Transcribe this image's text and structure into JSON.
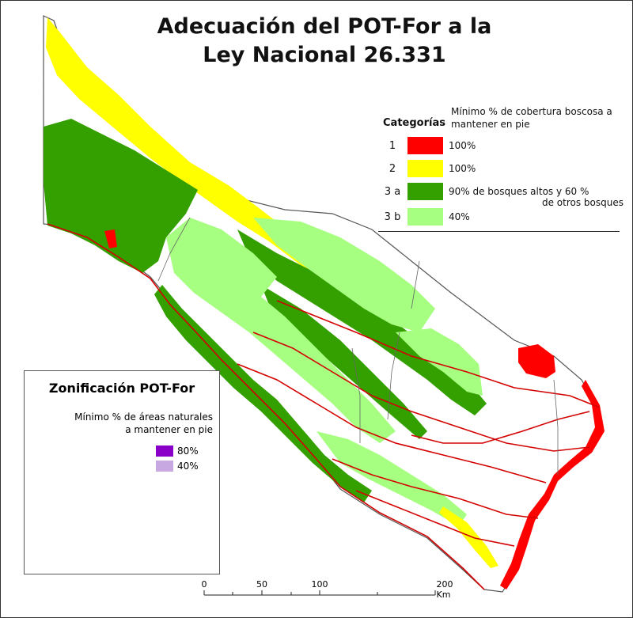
{
  "title": {
    "line1": "Adecuación del POT-For a la",
    "line2": "Ley Nacional 26.331"
  },
  "legend": {
    "categories_title": "Categorías",
    "minimum_title": "Mínimo % de cobertura boscosa a mantener en pie",
    "items": [
      {
        "code": "1",
        "color": "#ff0000",
        "label": "100%",
        "label2": ""
      },
      {
        "code": "2",
        "color": "#ffff00",
        "label": "100%",
        "label2": ""
      },
      {
        "code": "3 a",
        "color": "#33a000",
        "label": "90% de bosques altos y 60 %",
        "label2": "de otros bosques"
      },
      {
        "code": "3 b",
        "color": "#a6ff80",
        "label": "40%",
        "label2": ""
      }
    ]
  },
  "inset": {
    "title": "Zonificación POT-For",
    "subtitle_line1": "Mínimo % de áreas naturales",
    "subtitle_line2": "a mantener en pie",
    "items": [
      {
        "color": "#8b00c8",
        "label": "80%"
      },
      {
        "color": "#c8a8e0",
        "label": "40%"
      }
    ]
  },
  "scale_bar": {
    "labels": [
      "0",
      "50",
      "100",
      "200 Km"
    ]
  },
  "colors": {
    "cat1": "#ff0000",
    "cat2": "#ffff00",
    "cat3a": "#33a000",
    "cat3b": "#a6ff80",
    "rivers": "#d40000",
    "inset80": "#8b00c8",
    "inset40": "#c8a8e0"
  }
}
